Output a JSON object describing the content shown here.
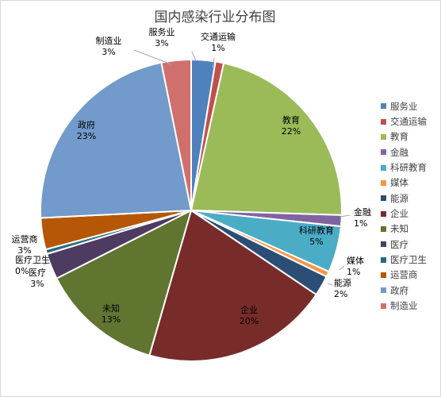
{
  "chart_data": {
    "type": "pie",
    "title": "国内感染行业分布图",
    "start_angle_deg": 0,
    "direction": "clockwise",
    "legend_position": "right",
    "categories": [
      "服务业",
      "交通运输",
      "教育",
      "金融",
      "科研教育",
      "媒体",
      "能源",
      "企业",
      "未知",
      "医疗",
      "医疗卫生",
      "运营商",
      "政府",
      "制造业"
    ],
    "values": [
      2.6,
      0.9,
      22.2,
      1.2,
      5.0,
      0.6,
      2.2,
      20.2,
      13.2,
      2.8,
      0.5,
      3.4,
      22.8,
      3.2
    ],
    "data_labels": [
      "3%",
      "1%",
      "22%",
      "1%",
      "5%",
      "1%",
      "2%",
      "20%",
      "13%",
      "3%",
      "0%",
      "3%",
      "23%",
      "3%"
    ],
    "colors": [
      "#4f81bd",
      "#c0504d",
      "#9bbb59",
      "#8064a2",
      "#4bacc6",
      "#f79646",
      "#2c4d75",
      "#772c2a",
      "#5f7530",
      "#4d3b62",
      "#276a7c",
      "#b65708",
      "#729aca",
      "#d0706d"
    ]
  }
}
